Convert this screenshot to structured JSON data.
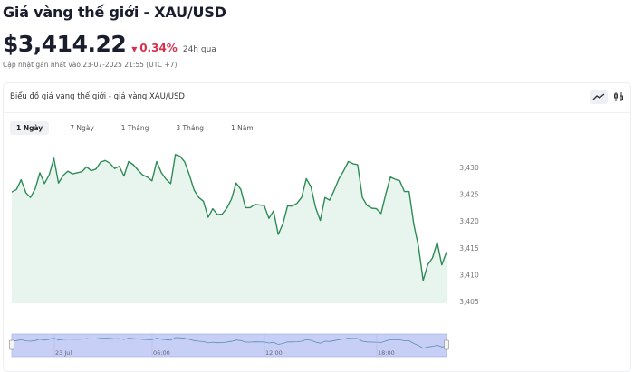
{
  "header": {
    "title": "Giá vàng thế giới - XAU/USD",
    "price": "$3,414.22",
    "change": "0.34%",
    "change_label": "24h qua",
    "updated": "Cập nhật gần nhất vào 23-07-2025 21:55 (UTC +7)",
    "change_color": "#d6304f"
  },
  "card": {
    "title": "Biểu đồ giá vàng thế giới - giá vàng XAU/USD",
    "icons": [
      "line-chart-icon",
      "candlestick-icon"
    ],
    "tabs": [
      {
        "label": "1 Ngày",
        "active": true
      },
      {
        "label": "7 Ngày"
      },
      {
        "label": "1 Tháng"
      },
      {
        "label": "3 Tháng"
      },
      {
        "label": "1 Năm"
      }
    ]
  },
  "chart_data": {
    "type": "area",
    "line_color": "#2e8b57",
    "fill_color": "#e8f5ee",
    "ylim": [
      3405,
      3433
    ],
    "y_ticks": [
      "3,430",
      "3,425",
      "3,420",
      "3,415",
      "3,410",
      "3,405"
    ],
    "y_tick_values": [
      3430,
      3425,
      3420,
      3415,
      3410,
      3405
    ],
    "navigator_labels": [
      "23 Jul",
      "06:00",
      "12:00",
      "18:00"
    ],
    "values": [
      3425.4,
      3425.9,
      3427.7,
      3425.3,
      3424.4,
      3426.0,
      3429.0,
      3427.0,
      3428.6,
      3431.7,
      3427.1,
      3428.5,
      3429.3,
      3428.8,
      3429.0,
      3429.2,
      3430.1,
      3429.4,
      3429.7,
      3431.0,
      3431.3,
      3430.8,
      3429.8,
      3430.2,
      3428.4,
      3431.1,
      3430.5,
      3429.5,
      3428.6,
      3428.2,
      3427.5,
      3431.1,
      3429.0,
      3427.8,
      3427.0,
      3432.4,
      3432.1,
      3431.0,
      3428.6,
      3425.8,
      3424.4,
      3423.7,
      3420.7,
      3422.3,
      3421.2,
      3421.3,
      3422.4,
      3424.1,
      3427.1,
      3425.9,
      3422.5,
      3422.5,
      3423.1,
      3423.0,
      3422.9,
      3420.5,
      3421.9,
      3417.5,
      3419.5,
      3422.8,
      3422.8,
      3423.3,
      3424.4,
      3427.9,
      3426.4,
      3422.5,
      3420.1,
      3424.4,
      3423.9,
      3425.8,
      3427.9,
      3429.4,
      3431.1,
      3430.7,
      3430.5,
      3424.4,
      3422.9,
      3422.4,
      3422.3,
      3421.4,
      3425.0,
      3428.2,
      3427.8,
      3427.5,
      3425.5,
      3425.5,
      3419.4,
      3415.3,
      3408.9,
      3411.9,
      3413.1,
      3416.0,
      3411.8,
      3414.2
    ]
  }
}
